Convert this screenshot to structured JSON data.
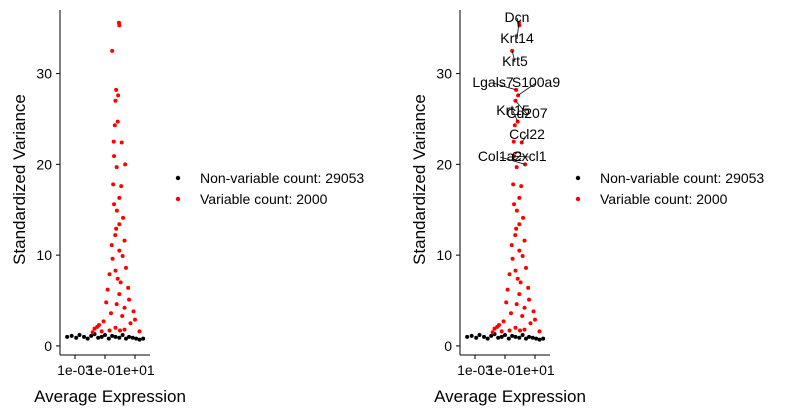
{
  "chart_data": [
    {
      "type": "scatter",
      "xlabel": "Average Expression",
      "ylabel": "Standardized Variance",
      "x_scale": "log10",
      "xlim": [
        0.0001,
        100
      ],
      "ylim": [
        -1,
        37
      ],
      "x_ticks": [
        0.001,
        0.1,
        10
      ],
      "x_tick_labels": [
        "1e-03",
        "1e-01",
        "1e+01"
      ],
      "y_ticks": [
        0,
        10,
        20,
        30
      ],
      "y_tick_labels": [
        "0",
        "10",
        "20",
        "30"
      ],
      "grid": false,
      "legend_position": "right",
      "legend": [
        {
          "label": "Non-variable count: 29053",
          "color": "#000000"
        },
        {
          "label": "Variable count: 2000",
          "color": "#ff0000"
        }
      ],
      "series": [
        {
          "name": "Non-variable count: 29053",
          "color": "#000000",
          "x": [
            0.0003,
            0.0006,
            0.0012,
            0.002,
            0.004,
            0.007,
            0.012,
            0.02,
            0.035,
            0.06,
            0.1,
            0.18,
            0.3,
            0.5,
            0.9,
            1.5,
            2.5,
            4,
            7,
            12,
            20,
            35
          ],
          "y": [
            1.0,
            1.1,
            0.9,
            1.2,
            1.0,
            0.8,
            1.1,
            1.3,
            0.9,
            1.0,
            1.2,
            0.8,
            1.1,
            1.0,
            0.9,
            1.2,
            0.8,
            1.0,
            0.9,
            0.8,
            0.7,
            0.8
          ]
        },
        {
          "name": "Variable count: 2000",
          "color": "#ff0000",
          "x": [
            0.85,
            0.9,
            0.3,
            0.55,
            0.75,
            0.5,
            0.7,
            0.45,
            0.38,
            1.3,
            0.4,
            2.2,
            0.6,
            0.35,
            1.2,
            0.9,
            0.4,
            0.62,
            1.6,
            0.9,
            0.55,
            0.48,
            2.0,
            0.28,
            0.9,
            1.5,
            0.32,
            2.5,
            0.5,
            0.2,
            0.7,
            1.1,
            3.5,
            0.15,
            0.9,
            4.0,
            0.12,
            0.6,
            2.0,
            8.0,
            0.25,
            1.4,
            10.0,
            0.08,
            5.0,
            0.04,
            0.03,
            0.02,
            0.2,
            2.0,
            0.06,
            0.5,
            20.0,
            0.015,
            1.0
          ],
          "y": [
            35.6,
            35.3,
            32.5,
            28.2,
            27.6,
            27.0,
            24.7,
            24.3,
            22.5,
            22.4,
            20.9,
            20.0,
            19.7,
            17.8,
            17.6,
            16.3,
            15.6,
            14.9,
            14.1,
            13.4,
            12.9,
            12.2,
            11.6,
            11.1,
            10.5,
            9.9,
            9.6,
            8.6,
            8.3,
            7.9,
            7.4,
            7.0,
            6.4,
            6.2,
            5.7,
            5.1,
            4.8,
            4.6,
            4.2,
            3.8,
            3.6,
            3.3,
            2.9,
            2.7,
            2.5,
            2.3,
            2.1,
            1.9,
            1.7,
            1.8,
            1.6,
            2.0,
            1.6,
            1.5,
            1.7
          ]
        }
      ]
    },
    {
      "type": "scatter",
      "xlabel": "Average Expression",
      "ylabel": "Standardized Variance",
      "x_scale": "log10",
      "xlim": [
        0.0001,
        100
      ],
      "ylim": [
        -1,
        37
      ],
      "x_ticks": [
        0.001,
        0.1,
        10
      ],
      "x_tick_labels": [
        "1e-03",
        "1e-01",
        "1e+01"
      ],
      "y_ticks": [
        0,
        10,
        20,
        30
      ],
      "y_tick_labels": [
        "0",
        "10",
        "20",
        "30"
      ],
      "grid": false,
      "legend_position": "right",
      "legend": [
        {
          "label": "Non-variable count: 29053",
          "color": "#000000"
        },
        {
          "label": "Variable count: 2000",
          "color": "#ff0000"
        }
      ],
      "annotations": [
        "Dcn",
        "Krt14",
        "Krt5",
        "Lgals7",
        "S100a9",
        "Krt15",
        "Cd207",
        "Ccl22",
        "Col1a2",
        "Cxcl1"
      ],
      "series": [
        {
          "name": "Non-variable count: 29053",
          "color": "#000000",
          "x": [
            0.0003,
            0.0006,
            0.0012,
            0.002,
            0.004,
            0.007,
            0.012,
            0.02,
            0.035,
            0.06,
            0.1,
            0.18,
            0.3,
            0.5,
            0.9,
            1.5,
            2.5,
            4,
            7,
            12,
            20,
            35
          ],
          "y": [
            1.0,
            1.1,
            0.9,
            1.2,
            1.0,
            0.8,
            1.1,
            1.3,
            0.9,
            1.0,
            1.2,
            0.8,
            1.1,
            1.0,
            0.9,
            1.2,
            0.8,
            1.0,
            0.9,
            0.8,
            0.7,
            0.8
          ]
        },
        {
          "name": "Variable count: 2000",
          "color": "#ff0000",
          "x": [
            0.85,
            0.9,
            0.3,
            0.55,
            0.75,
            0.5,
            0.7,
            0.45,
            0.38,
            1.3,
            0.4,
            2.2,
            0.6,
            0.35,
            1.2,
            0.9,
            0.4,
            0.62,
            1.6,
            0.9,
            0.55,
            0.48,
            2.0,
            0.28,
            0.9,
            1.5,
            0.32,
            2.5,
            0.5,
            0.2,
            0.7,
            1.1,
            3.5,
            0.15,
            0.9,
            4.0,
            0.12,
            0.6,
            2.0,
            8.0,
            0.25,
            1.4,
            10.0,
            0.08,
            5.0,
            0.04,
            0.03,
            0.02,
            0.2,
            2.0,
            0.06,
            0.5,
            20.0,
            0.015,
            1.0
          ],
          "y": [
            35.6,
            35.3,
            32.5,
            28.2,
            27.6,
            27.0,
            24.7,
            24.3,
            22.5,
            22.4,
            20.9,
            20.0,
            19.7,
            17.8,
            17.6,
            16.3,
            15.6,
            14.9,
            14.1,
            13.4,
            12.9,
            12.2,
            11.6,
            11.1,
            10.5,
            9.9,
            9.6,
            8.6,
            8.3,
            7.9,
            7.4,
            7.0,
            6.4,
            6.2,
            5.7,
            5.1,
            4.8,
            4.6,
            4.2,
            3.8,
            3.6,
            3.3,
            2.9,
            2.7,
            2.5,
            2.3,
            2.1,
            1.9,
            1.7,
            1.8,
            1.6,
            2.0,
            1.6,
            1.5,
            1.7
          ]
        }
      ]
    }
  ]
}
